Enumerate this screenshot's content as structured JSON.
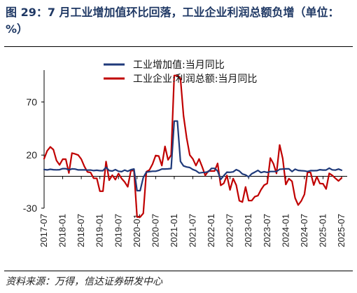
{
  "header": {
    "title": "图 29：7 月工业增加值环比回落，工业企业利润总额负增（单位：%）"
  },
  "footer": {
    "source": "资料来源：万得，信达证券研发中心"
  },
  "chart_data": {
    "type": "line",
    "title": "图 29：7 月工业增加值环比回落，工业企业利润总额负增（单位：%）",
    "ylim": [
      -30,
      100
    ],
    "yticks": [
      -30,
      20,
      70
    ],
    "grid": false,
    "legend_position": "top",
    "x_ticks": [
      "2017-07",
      "2018-01",
      "2018-07",
      "2019-01",
      "2019-07",
      "2020-01",
      "2020-07",
      "2021-01",
      "2021-07",
      "2022-01",
      "2022-07",
      "2023-01",
      "2023-07",
      "2024-01",
      "2024-07",
      "2025-01",
      "2025-07"
    ],
    "x": [
      "2017-07",
      "2017-08",
      "2017-09",
      "2017-10",
      "2017-11",
      "2017-12",
      "2018-01",
      "2018-02",
      "2018-03",
      "2018-04",
      "2018-05",
      "2018-06",
      "2018-07",
      "2018-08",
      "2018-09",
      "2018-10",
      "2018-11",
      "2018-12",
      "2019-01",
      "2019-02",
      "2019-03",
      "2019-04",
      "2019-05",
      "2019-06",
      "2019-07",
      "2019-08",
      "2019-09",
      "2019-10",
      "2019-11",
      "2019-12",
      "2020-01",
      "2020-02",
      "2020-03",
      "2020-04",
      "2020-05",
      "2020-06",
      "2020-07",
      "2020-08",
      "2020-09",
      "2020-10",
      "2020-11",
      "2020-12",
      "2021-01",
      "2021-02",
      "2021-03",
      "2021-04",
      "2021-05",
      "2021-06",
      "2021-07",
      "2021-08",
      "2021-09",
      "2021-10",
      "2021-11",
      "2021-12",
      "2022-01",
      "2022-02",
      "2022-03",
      "2022-04",
      "2022-05",
      "2022-06",
      "2022-07",
      "2022-08",
      "2022-09",
      "2022-10",
      "2022-11",
      "2022-12",
      "2023-01",
      "2023-02",
      "2023-03",
      "2023-04",
      "2023-05",
      "2023-06",
      "2023-07",
      "2023-08",
      "2023-09",
      "2023-10",
      "2023-11",
      "2023-12",
      "2024-01",
      "2024-02",
      "2024-03",
      "2024-04",
      "2024-05",
      "2024-06",
      "2024-07",
      "2024-08",
      "2024-09",
      "2024-10",
      "2024-11",
      "2024-12",
      "2025-01",
      "2025-02",
      "2025-03",
      "2025-04",
      "2025-05",
      "2025-06",
      "2025-07"
    ],
    "series": [
      {
        "name": "工业增加值:当月同比",
        "color": "#1f3a7a",
        "values": [
          6.4,
          6.0,
          6.6,
          6.2,
          6.1,
          6.2,
          7.2,
          7.2,
          6.0,
          7.0,
          6.8,
          6.0,
          6.0,
          6.1,
          5.8,
          5.9,
          5.4,
          5.7,
          5.3,
          5.3,
          8.5,
          5.4,
          5.0,
          6.3,
          4.8,
          4.4,
          5.8,
          4.7,
          6.2,
          6.9,
          -13.5,
          -13.5,
          -1.1,
          3.9,
          4.4,
          4.8,
          4.8,
          5.6,
          6.9,
          6.9,
          7.0,
          7.3,
          52.0,
          52.0,
          14.1,
          9.8,
          8.8,
          8.3,
          6.4,
          5.3,
          3.1,
          3.5,
          3.8,
          4.3,
          7.5,
          7.5,
          5.0,
          -2.9,
          0.7,
          3.9,
          3.8,
          4.2,
          6.3,
          5.0,
          2.2,
          1.3,
          -0.6,
          2.4,
          3.9,
          5.6,
          3.5,
          4.4,
          3.7,
          4.5,
          4.5,
          4.6,
          6.6,
          6.8,
          7.0,
          7.0,
          4.5,
          6.7,
          5.6,
          5.3,
          5.1,
          4.5,
          5.4,
          5.3,
          5.4,
          6.2,
          5.9,
          5.9,
          7.7,
          6.1,
          5.8,
          6.8,
          5.7
        ]
      },
      {
        "name": "工业企业:利润总额:当月同比",
        "color": "#c00000",
        "values": [
          16.5,
          24.0,
          27.7,
          25.1,
          14.9,
          10.8,
          16.1,
          16.1,
          3.1,
          21.9,
          21.1,
          20.0,
          16.2,
          9.2,
          4.1,
          3.6,
          -1.8,
          -1.9,
          -14.0,
          -14.0,
          13.9,
          -3.7,
          1.1,
          -3.1,
          2.6,
          -2.0,
          -5.3,
          -9.9,
          5.4,
          5.4,
          -38.3,
          -38.3,
          -34.9,
          4.3,
          6.0,
          11.5,
          19.6,
          19.1,
          10.1,
          28.2,
          15.5,
          20.1,
          94.9,
          94.9,
          92.3,
          57.0,
          36.4,
          20.0,
          16.4,
          10.1,
          16.3,
          9.0,
          0.8,
          5.0,
          5.0,
          5.0,
          12.2,
          -8.5,
          -6.5,
          0.8,
          -12.8,
          -2.1,
          -8.3,
          -23.0,
          -24.2,
          -10.0,
          -22.9,
          -22.9,
          -19.2,
          -18.2,
          -12.6,
          -8.3,
          -6.7,
          17.2,
          11.9,
          2.7,
          29.5,
          16.8,
          -7.7,
          -2.2,
          -4.7,
          -20.4,
          -27.0,
          -23.2,
          -17.0,
          4.0,
          3.6,
          -8.2,
          -0.3,
          -6.8,
          -7.0,
          -11.9,
          2.8,
          0.9,
          -1.8,
          -4.3,
          -1.5
        ]
      }
    ]
  }
}
